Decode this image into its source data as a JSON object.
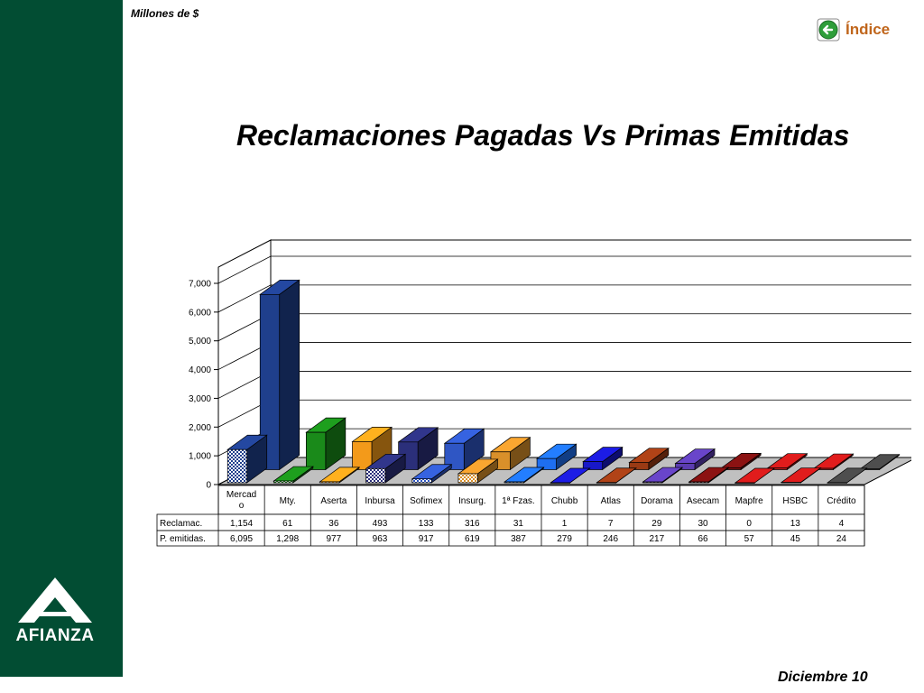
{
  "header": {
    "units": "Millones de $",
    "index_link": "Índice"
  },
  "logo": {
    "text": "AFIANZA"
  },
  "footer": {
    "date": "Diciembre 10"
  },
  "colors": {
    "sidebar": "#024d33",
    "index_text": "#c0661c"
  },
  "chart_data": {
    "type": "bar",
    "title": "Reclamaciones Pagadas Vs Primas Emitidas",
    "ylim": [
      0,
      7000
    ],
    "yticks": [
      "0",
      "1,000",
      "2,000",
      "3,000",
      "4,000",
      "5,000",
      "6,000",
      "7,000"
    ],
    "categories": [
      "Mercad o",
      "Mty.",
      "Aserta",
      "Inbursa",
      "Sofimex",
      "Insurg.",
      "1ª Fzas.",
      "Chubb",
      "Atlas",
      "Dorama",
      "Asecam",
      "Mapfre",
      "HSBC",
      "Crédito"
    ],
    "colors": [
      "#1f3f8c",
      "#1a8a1a",
      "#f39a1a",
      "#2b2f7a",
      "#2f56c4",
      "#d9902a",
      "#1e6ef0",
      "#1818c8",
      "#9a3a14",
      "#5b3cb0",
      "#7a1010",
      "#c41818",
      "#c41818",
      "#444444"
    ],
    "series": [
      {
        "name": "Reclamac.",
        "values": [
          1154,
          61,
          36,
          493,
          133,
          316,
          31,
          1,
          7,
          29,
          30,
          0,
          13,
          4
        ],
        "labels": [
          "1,154",
          "61",
          "36",
          "493",
          "133",
          "316",
          "31",
          "1",
          "7",
          "29",
          "30",
          "0",
          "13",
          "4"
        ]
      },
      {
        "name": "P. emitidas.",
        "values": [
          6095,
          1298,
          977,
          963,
          917,
          619,
          387,
          279,
          246,
          217,
          66,
          57,
          45,
          24
        ],
        "labels": [
          "6,095",
          "1,298",
          "977",
          "963",
          "917",
          "619",
          "387",
          "279",
          "246",
          "217",
          "66",
          "57",
          "45",
          "24"
        ]
      }
    ]
  }
}
